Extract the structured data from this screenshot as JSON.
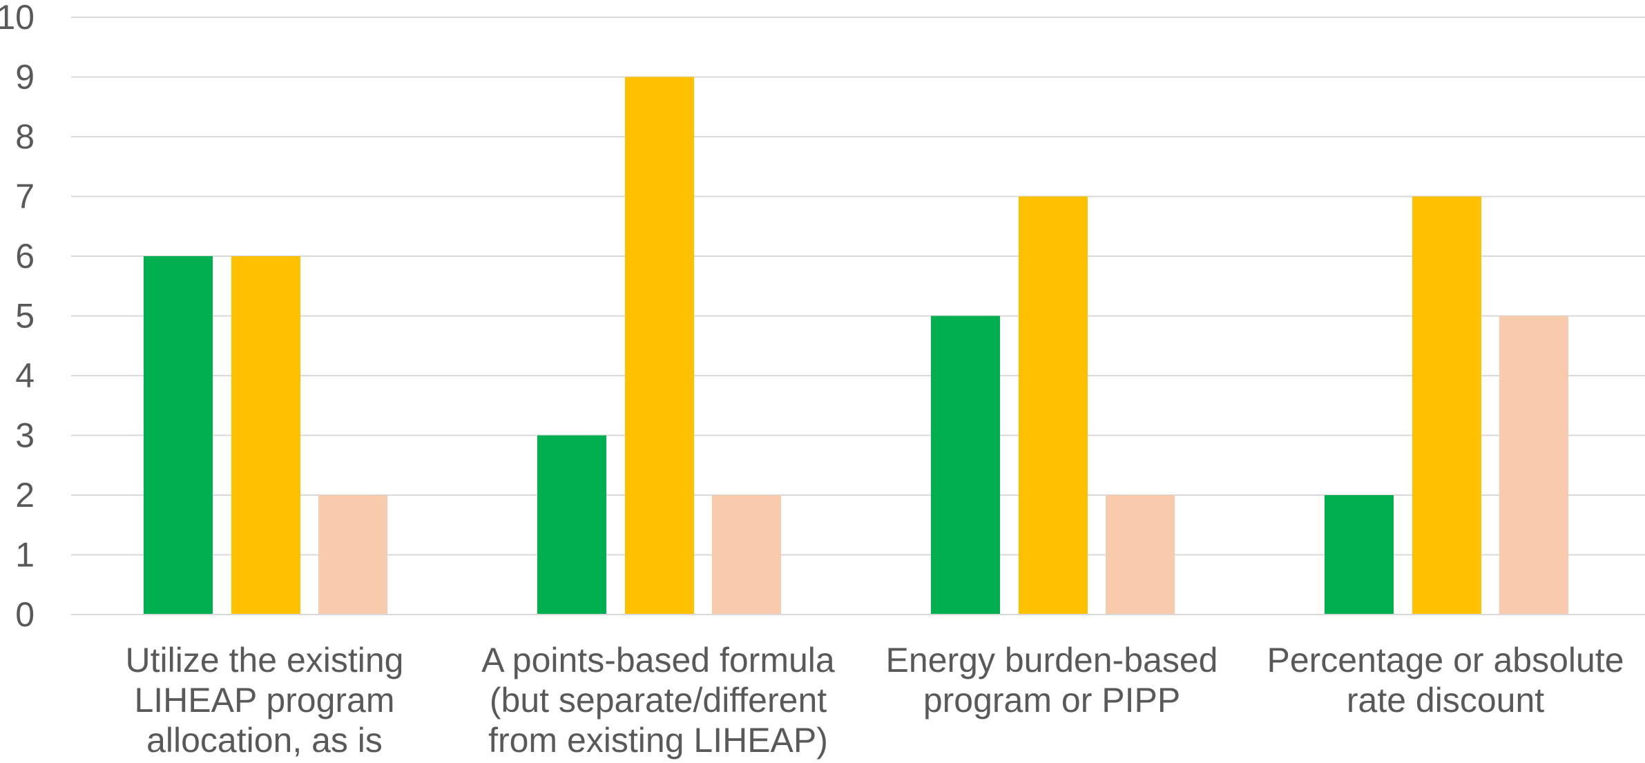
{
  "chart_data": {
    "type": "bar",
    "categories": [
      [
        "Utilize the existing",
        "LIHEAP program",
        "allocation, as is"
      ],
      [
        "A points-based formula",
        "(but separate/different",
        "from existing LIHEAP)"
      ],
      [
        "Energy burden-based",
        "program or PIPP"
      ],
      [
        "Percentage or absolute",
        "rate discount"
      ]
    ],
    "series": [
      {
        "values": [
          6,
          3,
          5,
          2
        ],
        "color": "#00b050"
      },
      {
        "values": [
          6,
          9,
          7,
          7
        ],
        "color": "#ffc000"
      },
      {
        "values": [
          2,
          2,
          2,
          5
        ],
        "color": "#f8cbad"
      }
    ],
    "ylim": [
      0,
      10
    ],
    "yticks": [
      0,
      1,
      2,
      3,
      4,
      5,
      6,
      7,
      8,
      9,
      10
    ],
    "grid": true,
    "legend": "none",
    "title": "",
    "xlabel": "",
    "ylabel": ""
  }
}
